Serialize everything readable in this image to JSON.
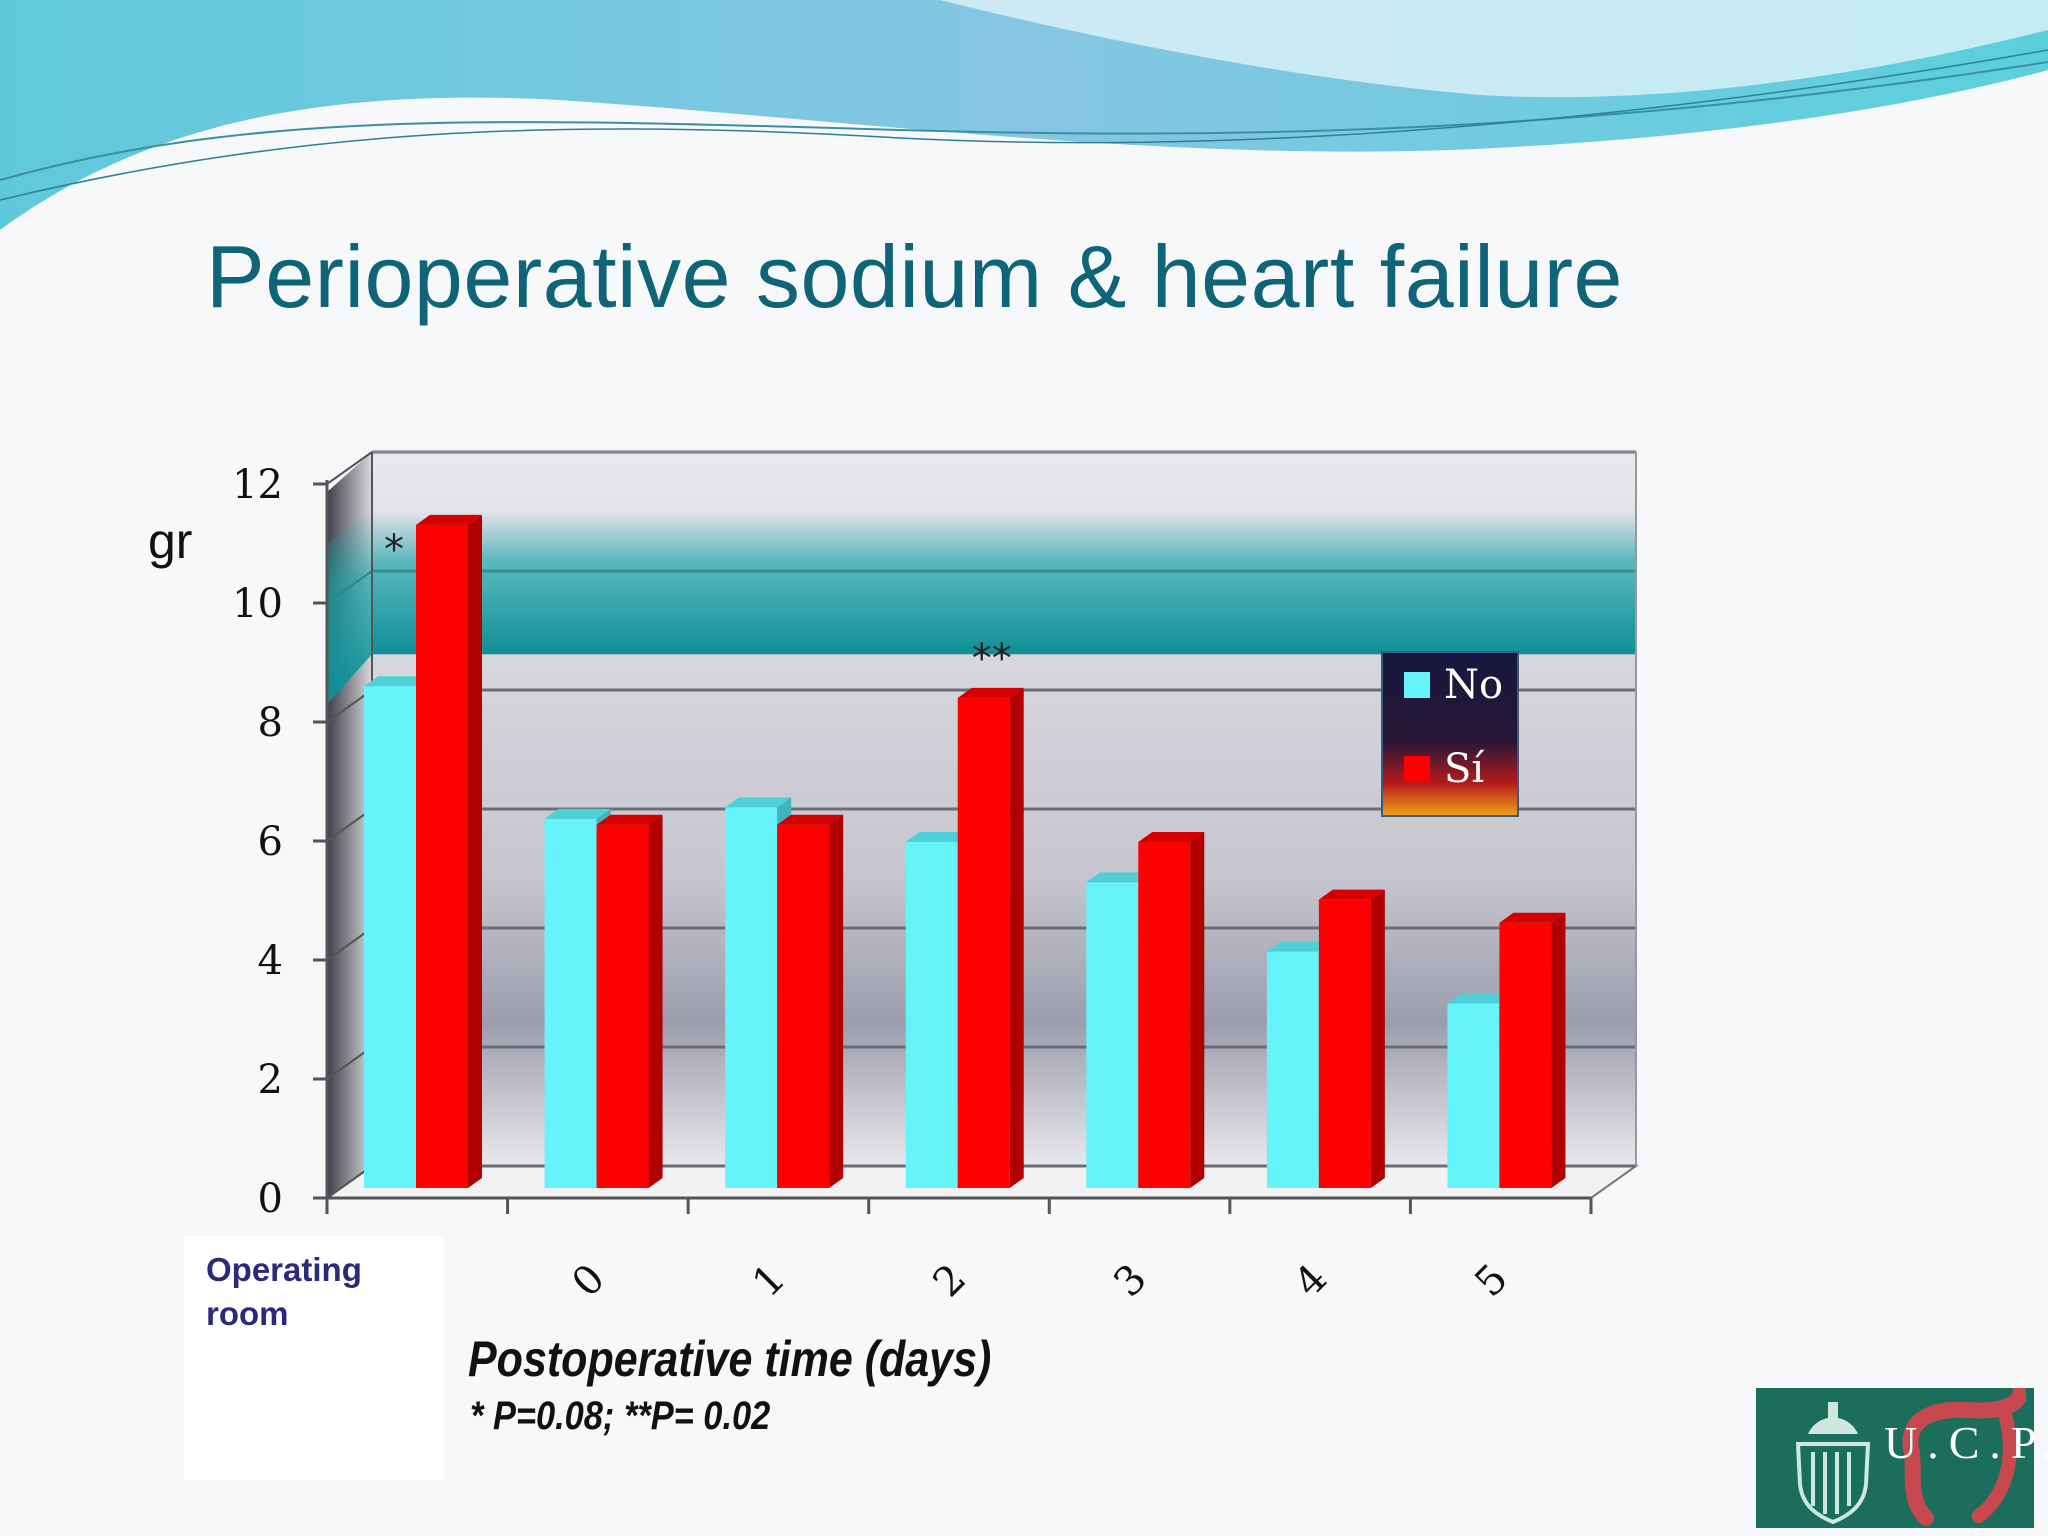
{
  "slide": {
    "title": "Perioperative sodium & heart failure",
    "y_unit": "gr",
    "first_group_label": "Operating room",
    "x_title": "Postoperative time (days)",
    "pvalue_note": "* P=0.08; **P= 0.02",
    "logo_text": "U.C.P."
  },
  "colors": {
    "title": "#0f6478",
    "series_no": "#66f3fa",
    "series_si": "#ff0000",
    "band": "#13a3a8",
    "legend_bg": "#1c1840"
  },
  "chart_data": {
    "type": "bar",
    "title": "Perioperative sodium & heart failure",
    "xlabel": "Postoperative time (days)",
    "ylabel": "gr",
    "ylim": [
      0,
      12
    ],
    "yticks": [
      "0",
      "2",
      "4",
      "6",
      "8",
      "10",
      "12"
    ],
    "categories": [
      "Operating room",
      "0",
      "1",
      "2",
      "3",
      "4",
      "5"
    ],
    "series": [
      {
        "name": "No",
        "values": [
          8.7,
          6.4,
          6.6,
          6.0,
          5.3,
          4.1,
          3.2
        ]
      },
      {
        "name": "Sí",
        "values": [
          11.5,
          6.3,
          6.3,
          8.5,
          6.0,
          5.0,
          4.6
        ]
      }
    ],
    "annotations": [
      {
        "category": "Operating room",
        "text": "*"
      },
      {
        "category": "2",
        "text": "**"
      }
    ],
    "legend": {
      "position": "right",
      "entries": [
        "No",
        "Sí"
      ]
    },
    "grid": true
  }
}
